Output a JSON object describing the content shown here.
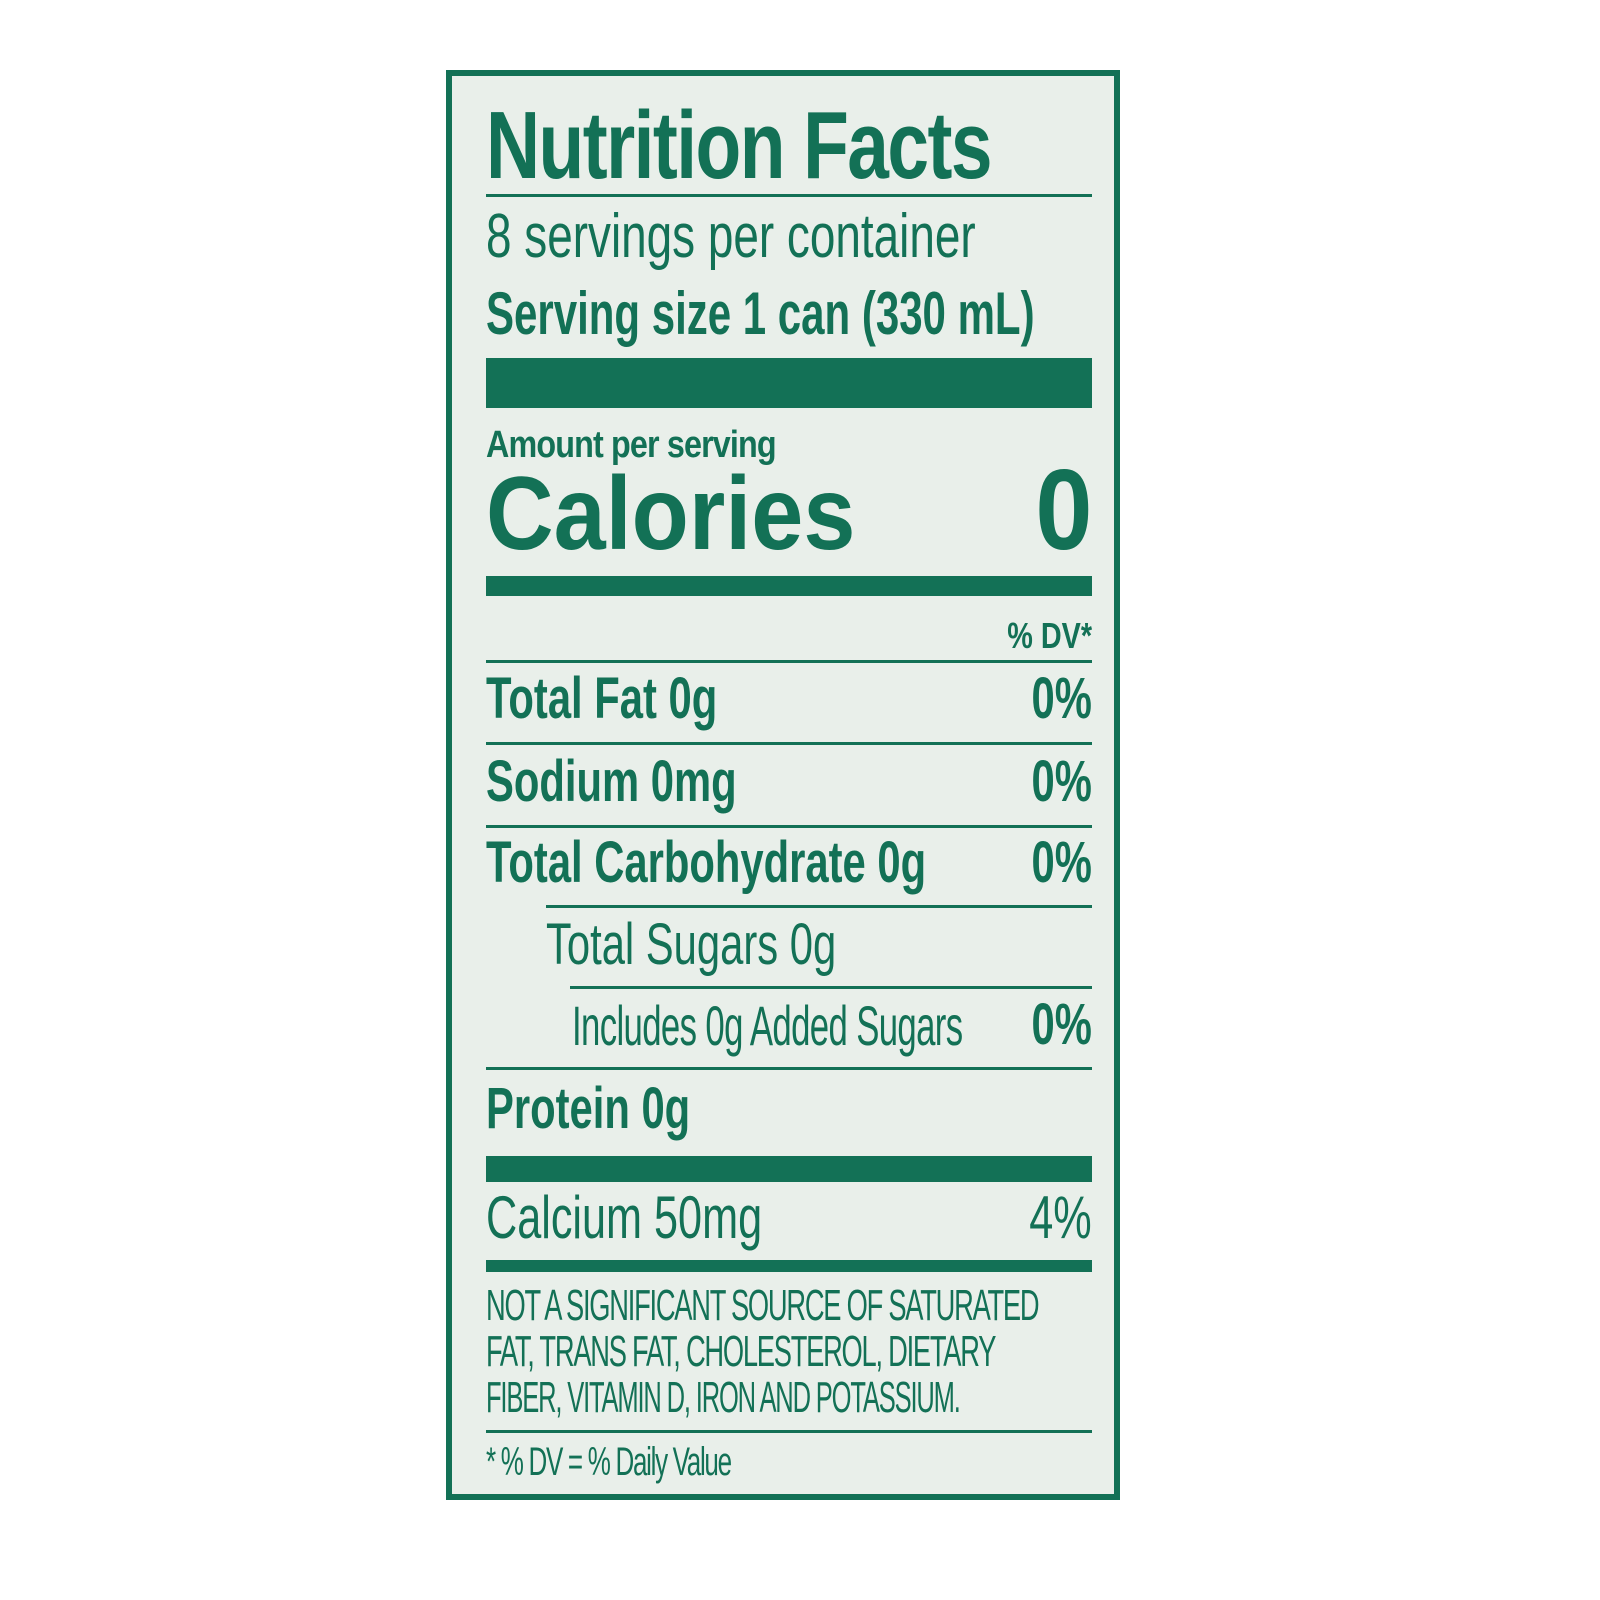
{
  "title": "Nutrition Facts",
  "servings_per_container": "8 servings per container",
  "serving_size": "Serving size 1 can (330 mL)",
  "amount_per_serving": "Amount per serving",
  "calories_label": "Calories",
  "calories_value": "0",
  "dv_header": "% DV*",
  "nutrients": [
    {
      "label": "Total Fat 0g",
      "dv": "0%"
    },
    {
      "label": "Sodium 0mg",
      "dv": "0%"
    },
    {
      "label": "Total Carbohydrate 0g",
      "dv": "0%"
    },
    {
      "label": "Total Sugars 0g",
      "dv": ""
    },
    {
      "label": "Includes 0g Added Sugars",
      "dv": "0%"
    },
    {
      "label": "Protein 0g",
      "dv": ""
    },
    {
      "label": "Calcium 50mg",
      "dv": "4%"
    }
  ],
  "footnote": [
    "NOT A SIGNIFICANT SOURCE OF SATURATED",
    "FAT, TRANS FAT, CHOLESTEROL, DIETARY",
    "FIBER, VITAMIN D, IRON AND POTASSIUM."
  ],
  "dv_note": "* % DV = % Daily Value",
  "colors": {
    "ink": "#137156",
    "background": "#e9efea"
  }
}
